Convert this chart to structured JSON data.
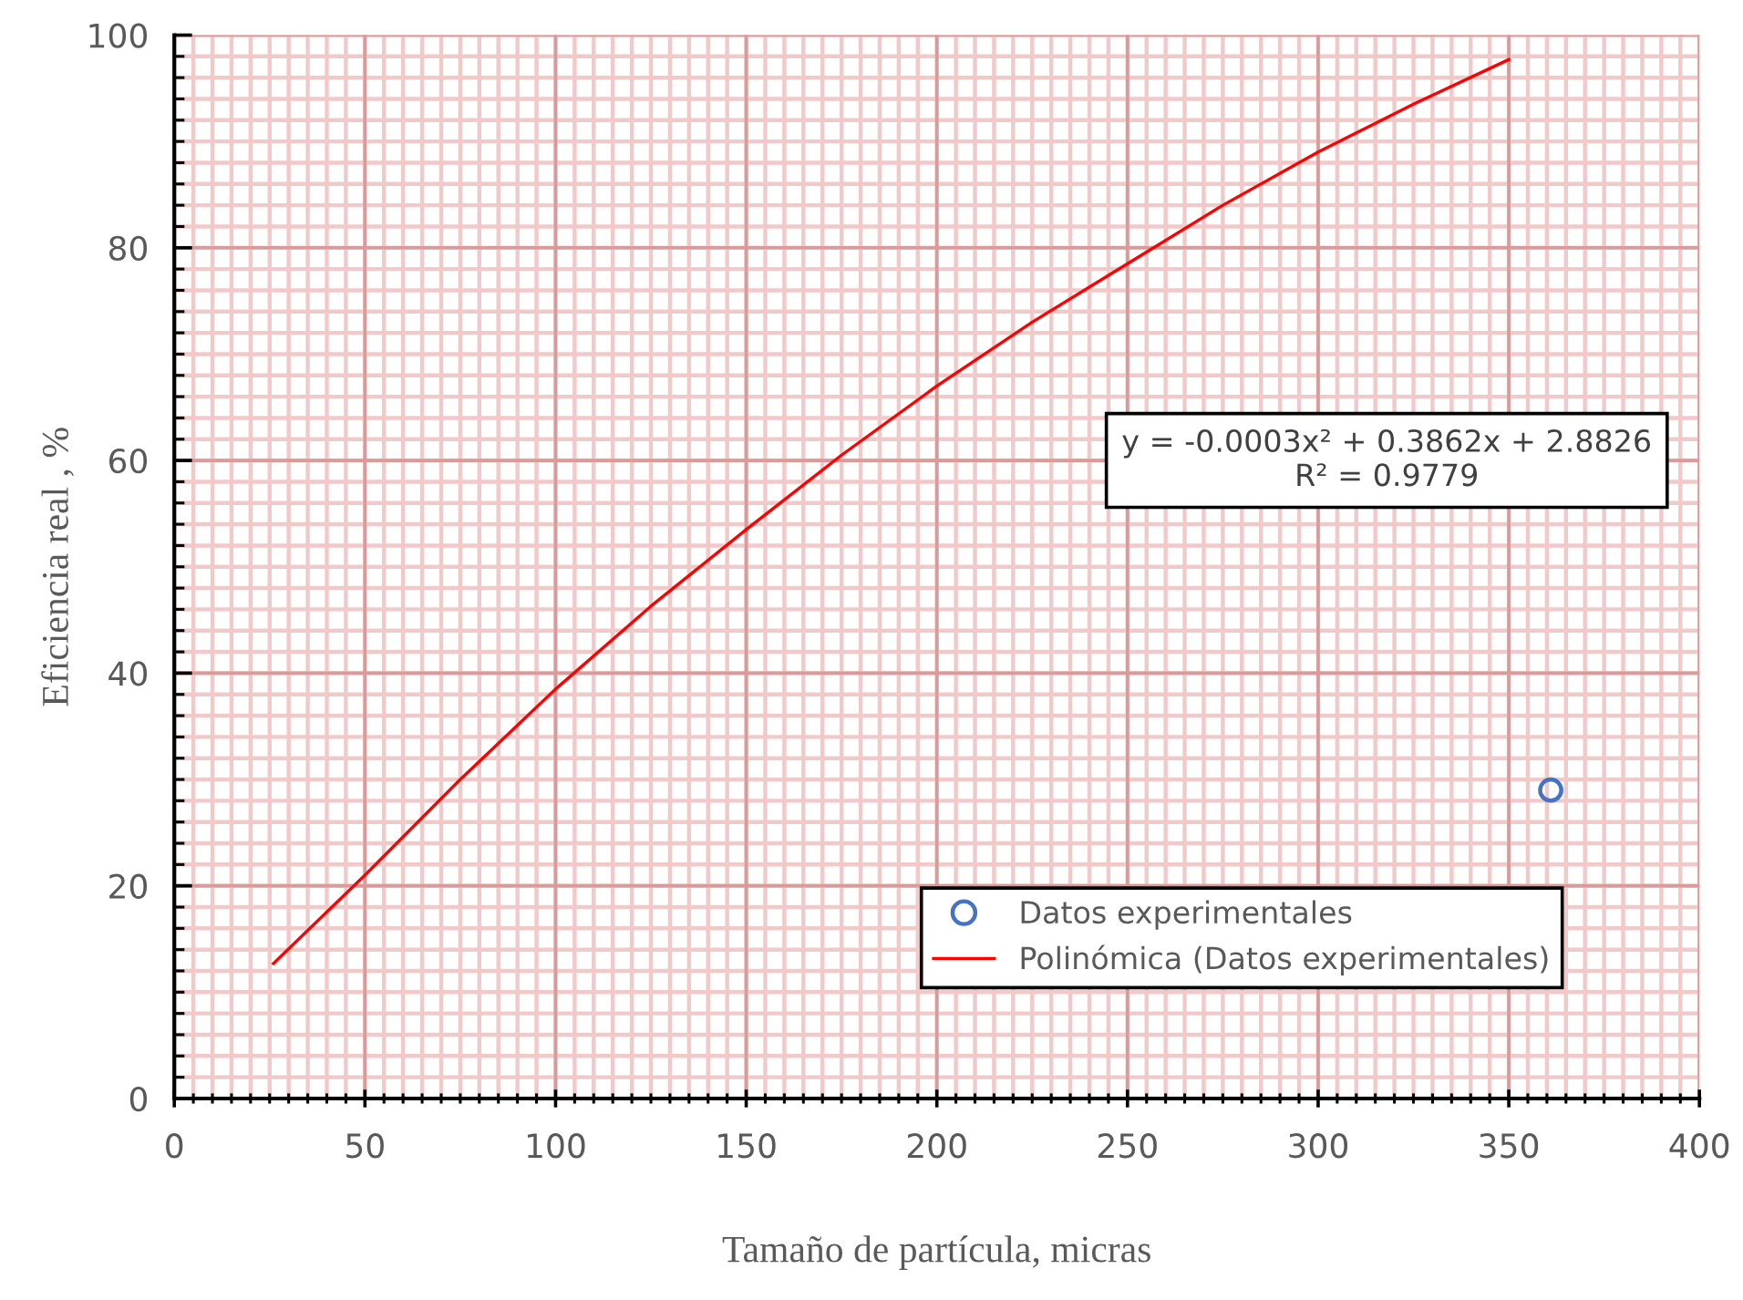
{
  "chart_data": {
    "type": "scatter",
    "xlabel": "Tamaño de partícula, micras",
    "ylabel": "Eficiencia real , %",
    "annotations": [
      "y = -0.0003x² + 0.3862x + 2.8826\nR² = 0.9779"
    ],
    "series": [
      {
        "name": "Datos experimentales",
        "color": "#4472c4",
        "marker": "circle",
        "x": [
          361
        ],
        "values": [
          29
        ]
      },
      {
        "name": "Polinómica (Datos experimentales)",
        "type": "line",
        "color": "#ff0000",
        "marker": "none",
        "line_style": "solid",
        "x": [
          26,
          50,
          75,
          100,
          125,
          150,
          175,
          200,
          225,
          250,
          275,
          300,
          325,
          350
        ],
        "values": [
          12.7,
          21,
          30,
          38.5,
          46.3,
          53.5,
          60.5,
          67,
          73,
          78.5,
          84,
          89,
          93.5,
          97.7
        ]
      }
    ],
    "xlim": [
      0,
      400
    ],
    "xticks": [
      0,
      50,
      100,
      150,
      200,
      250,
      300,
      350,
      400
    ],
    "ylim": [
      0,
      100
    ],
    "yticks": [
      0,
      20,
      40,
      60,
      80,
      100
    ],
    "grid": true,
    "legend": "bottom right"
  }
}
